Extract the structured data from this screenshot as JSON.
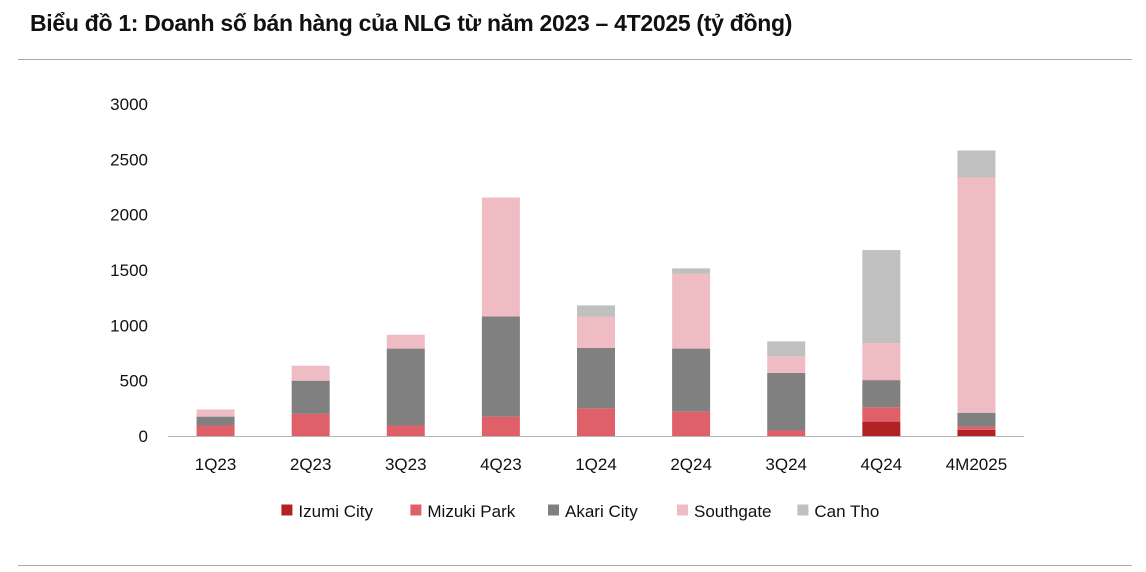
{
  "chart_data": {
    "type": "bar",
    "stacked": true,
    "title": "Biểu đồ 1: Doanh số bán hàng của NLG từ năm 2023 – 4T2025 (tỷ đồng)",
    "xlabel": "",
    "ylabel": "",
    "ylim": [
      0,
      3000
    ],
    "yticks": [
      0,
      500,
      1000,
      1500,
      2000,
      2500,
      3000
    ],
    "grid": false,
    "legend_position": "bottom",
    "categories": [
      "1Q23",
      "2Q23",
      "3Q23",
      "4Q23",
      "1Q24",
      "2Q24",
      "3Q24",
      "4Q24",
      "4M2025"
    ],
    "series": [
      {
        "name": "Izumi City",
        "color": "#b22222",
        "values": [
          0,
          0,
          0,
          0,
          0,
          0,
          0,
          130,
          55
        ]
      },
      {
        "name": "Mizuki Park",
        "color": "#e0606a",
        "values": [
          95,
          200,
          95,
          175,
          250,
          220,
          50,
          130,
          30
        ]
      },
      {
        "name": "Akari City",
        "color": "#808080",
        "values": [
          80,
          300,
          695,
          905,
          545,
          570,
          520,
          245,
          125
        ]
      },
      {
        "name": "Southgate",
        "color": "#f0bcc4",
        "values": [
          65,
          135,
          125,
          1075,
          285,
          675,
          150,
          335,
          2125
        ]
      },
      {
        "name": "Can Tho",
        "color": "#c0c0c0",
        "values": [
          0,
          0,
          0,
          0,
          100,
          50,
          135,
          840,
          245
        ]
      }
    ]
  }
}
